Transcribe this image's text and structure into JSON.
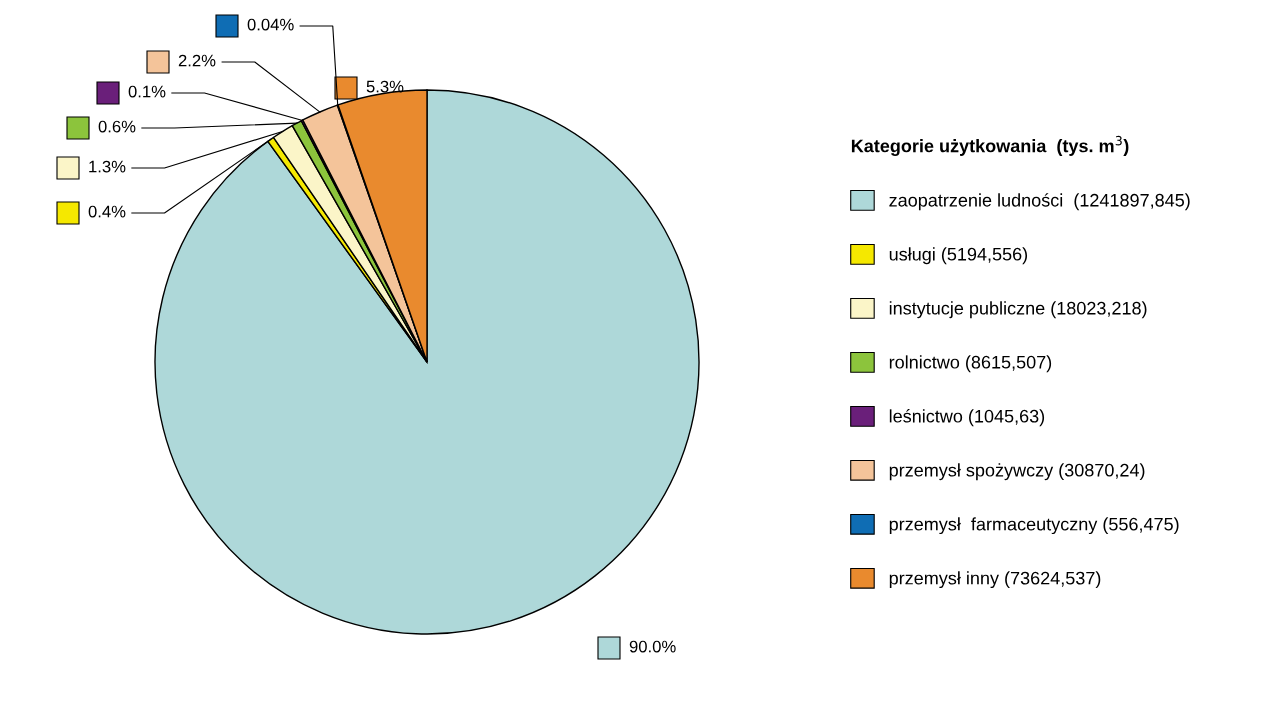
{
  "chart_data": {
    "type": "pie",
    "categories": [
      "zaopatrzenie ludności  (1241897,845)",
      "usługi (5194,556)",
      "instytucje publiczne (18023,218)",
      "rolnictwo (8615,507)",
      "leśnictwo (1045,63)",
      "przemysł spożywczy (30870,24)",
      "przemysł  farmaceutyczny (556,475)",
      "przemysł inny (73624,537)"
    ],
    "values": [
      90.0,
      0.4,
      1.3,
      0.6,
      0.1,
      2.2,
      0.04,
      5.3
    ],
    "value_labels": [
      "90.0%",
      "0.4%",
      "1.3%",
      "0.6%",
      "0.1%",
      "2.2%",
      "0.04%",
      "5.3%"
    ],
    "colors": [
      "#aed8d9",
      "#f5e800",
      "#fbf5c8",
      "#8cc43c",
      "#6a1f7a",
      "#f4c49a",
      "#0f6db4",
      "#e98a2e"
    ],
    "legend_title": "Kategorie użytkowania  (tys. m$^{3}$)",
    "legend": "right"
  }
}
